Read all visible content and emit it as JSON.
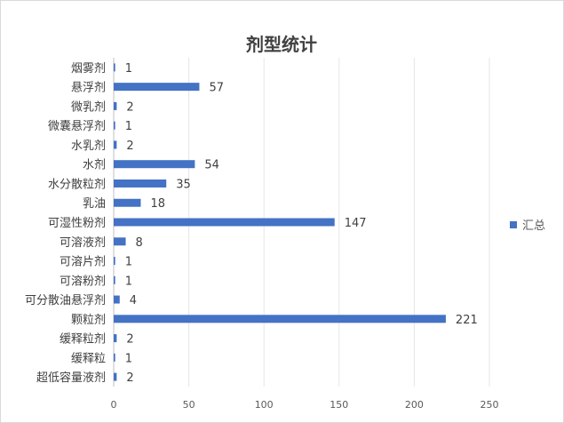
{
  "chart_data": {
    "type": "bar",
    "orientation": "horizontal",
    "title": "剂型统计",
    "categories": [
      "烟雾剂",
      "悬浮剂",
      "微乳剂",
      "微囊悬浮剂",
      "水乳剂",
      "水剂",
      "水分散粒剂",
      "乳油",
      "可湿性粉剂",
      "可溶液剂",
      "可溶片剂",
      "可溶粉剂",
      "可分散油悬浮剂",
      "颗粒剂",
      "缓释粒剂",
      "缓释粒",
      "超低容量液剂"
    ],
    "series": [
      {
        "name": "汇总",
        "values": [
          1,
          57,
          2,
          1,
          2,
          54,
          35,
          18,
          147,
          8,
          1,
          1,
          4,
          221,
          2,
          1,
          2
        ]
      }
    ],
    "x_ticks": [
      0,
      50,
      100,
      150,
      200,
      250
    ],
    "xlim": [
      0,
      250
    ],
    "grid": true,
    "legend_position": "right",
    "bar_color": "#4472c4"
  }
}
